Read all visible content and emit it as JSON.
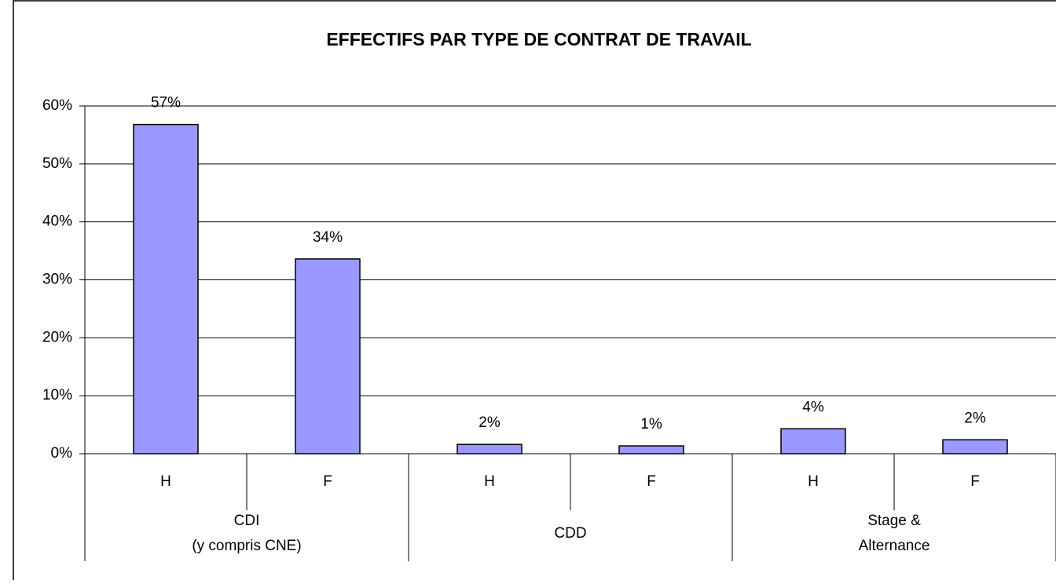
{
  "chart_data": {
    "type": "bar",
    "title": "EFFECTIFS PAR TYPE DE CONTRAT DE TRAVAIL",
    "categories": [
      "H",
      "F",
      "H",
      "F",
      "H",
      "F"
    ],
    "groups": [
      [
        "CDI",
        "(y compris CNE)"
      ],
      [
        "CDD"
      ],
      [
        "Stage &",
        "Alternance"
      ]
    ],
    "values": [
      56.8,
      33.6,
      1.6,
      1.35,
      4.3,
      2.4
    ],
    "value_labels": [
      "57%",
      "34%",
      "2%",
      "1%",
      "4%",
      "2%"
    ],
    "color": "#9999ff",
    "ylim": [
      0,
      60
    ],
    "yticks": [
      {
        "value": 0,
        "label": "0%"
      },
      {
        "value": 10,
        "label": "10%"
      },
      {
        "value": 20,
        "label": "20%"
      },
      {
        "value": 30,
        "label": "30%"
      },
      {
        "value": 40,
        "label": "40%"
      },
      {
        "value": 50,
        "label": "50%"
      },
      {
        "value": 60,
        "label": "60%"
      }
    ],
    "grid": true
  }
}
